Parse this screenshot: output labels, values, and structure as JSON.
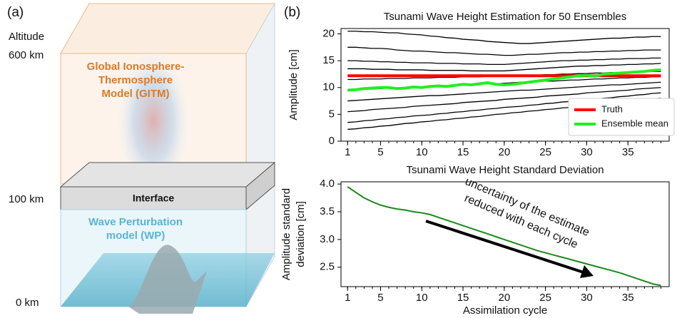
{
  "panel_a": {
    "label": "(a)",
    "altitude_label": "Altitude",
    "altitudes": [
      "600 km",
      "100 km",
      "0 km"
    ],
    "gitm_label": [
      "Global Ionosphere-",
      "Thermosphere",
      "Model (GITM)"
    ],
    "interface_label": "Interface",
    "wp_label": [
      "Wave Perturbation",
      "model (WP)"
    ]
  },
  "panel_b_label": "(b)",
  "chart_data": [
    {
      "type": "line",
      "title": "Tsunami Wave Height Estimation for 50 Ensembles",
      "ylabel": [
        "Amplitude [cm]"
      ],
      "x": [
        1,
        2,
        3,
        4,
        5,
        6,
        7,
        8,
        9,
        10,
        11,
        12,
        13,
        14,
        15,
        16,
        17,
        18,
        19,
        20,
        21,
        22,
        23,
        24,
        25,
        26,
        27,
        28,
        29,
        30,
        31,
        32,
        33,
        34,
        35,
        36,
        37,
        38,
        39
      ],
      "xlim": [
        0.2,
        40
      ],
      "xticks": [
        1,
        5,
        10,
        15,
        20,
        25,
        30,
        35
      ],
      "ylim": [
        0,
        21
      ],
      "yticks": [
        0,
        5,
        10,
        15,
        20
      ],
      "ensemble_color": "#000000",
      "ensemble_members": [
        [
          20.5,
          20.5,
          20.4,
          20.4,
          20.3,
          20.2,
          20.2,
          20.0,
          19.9,
          19.8,
          19.6,
          19.5,
          19.3,
          19.2,
          19.0,
          18.9,
          18.8,
          18.6,
          18.5,
          18.4,
          18.3,
          18.2,
          18.2,
          18.3,
          18.4,
          18.5,
          18.6,
          18.7,
          18.8,
          18.9,
          19.0,
          19.1,
          19.2,
          19.2,
          19.3,
          19.4,
          19.4,
          19.5,
          19.5
        ],
        [
          17.5,
          17.5,
          17.4,
          17.3,
          17.3,
          17.2,
          17.0,
          16.9,
          16.8,
          16.8,
          16.7,
          16.6,
          16.5,
          16.5,
          16.4,
          16.3,
          16.2,
          16.2,
          16.1,
          16.0,
          16.0,
          16.1,
          16.2,
          16.2,
          16.3,
          16.4,
          16.5,
          16.5,
          16.6,
          16.6,
          16.7,
          16.7,
          16.8,
          16.8,
          16.9,
          16.9,
          17.0,
          17.0,
          17.0
        ],
        [
          15.0,
          15.0,
          14.9,
          14.9,
          14.8,
          14.8,
          14.7,
          14.7,
          14.6,
          14.6,
          14.6,
          14.5,
          14.5,
          14.5,
          14.4,
          14.4,
          14.4,
          14.3,
          14.3,
          14.3,
          14.4,
          14.5,
          14.6,
          14.7,
          14.8,
          14.9,
          15.0,
          15.0,
          15.1,
          15.1,
          15.2,
          15.2,
          15.3,
          15.3,
          15.4,
          15.4,
          15.4,
          15.5,
          15.5
        ],
        [
          13.5,
          13.5,
          13.5,
          13.4,
          13.4,
          13.4,
          13.3,
          13.3,
          13.3,
          13.3,
          13.2,
          13.2,
          13.2,
          13.2,
          13.2,
          13.1,
          13.1,
          13.1,
          13.1,
          13.1,
          13.2,
          13.3,
          13.4,
          13.5,
          13.6,
          13.7,
          13.8,
          13.9,
          14.0,
          14.0,
          14.1,
          14.1,
          14.2,
          14.2,
          14.3,
          14.3,
          14.4,
          14.4,
          14.5
        ],
        [
          11.5,
          11.5,
          11.6,
          11.6,
          11.6,
          11.7,
          11.7,
          11.7,
          11.8,
          11.8,
          11.8,
          11.9,
          11.9,
          11.9,
          12.0,
          12.0,
          12.0,
          12.1,
          12.1,
          12.1,
          12.2,
          12.2,
          12.3,
          12.3,
          12.4,
          12.4,
          12.5,
          12.5,
          12.6,
          12.6,
          12.7,
          12.7,
          12.8,
          12.8,
          12.8,
          12.9,
          12.9,
          13.0,
          13.0
        ],
        [
          9.5,
          9.6,
          9.7,
          9.7,
          9.8,
          9.9,
          9.9,
          10.0,
          10.1,
          10.1,
          10.2,
          10.3,
          10.3,
          10.4,
          10.5,
          10.5,
          10.6,
          10.7,
          10.7,
          10.8,
          10.9,
          11.0,
          11.0,
          11.1,
          11.2,
          11.2,
          11.3,
          11.4,
          11.4,
          11.5,
          11.6,
          11.6,
          11.7,
          11.8,
          11.8,
          11.9,
          11.9,
          12.0,
          12.0
        ],
        [
          7.5,
          7.6,
          7.7,
          7.8,
          7.9,
          8.0,
          8.1,
          8.2,
          8.3,
          8.4,
          8.5,
          8.5,
          8.6,
          8.7,
          8.8,
          8.9,
          9.0,
          9.1,
          9.2,
          9.3,
          9.4,
          9.5,
          9.5,
          9.6,
          9.7,
          9.8,
          9.9,
          10.0,
          10.1,
          10.2,
          10.3,
          10.4,
          10.5,
          10.5,
          10.6,
          10.7,
          10.8,
          10.9,
          11.0
        ],
        [
          5.5,
          5.6,
          5.7,
          5.9,
          6.0,
          6.1,
          6.2,
          6.3,
          6.5,
          6.6,
          6.7,
          6.8,
          6.9,
          7.0,
          7.2,
          7.3,
          7.4,
          7.5,
          7.6,
          7.8,
          7.9,
          8.0,
          8.1,
          8.2,
          8.4,
          8.5,
          8.6,
          8.7,
          8.8,
          9.0,
          9.1,
          9.2,
          9.3,
          9.4,
          9.5,
          9.7,
          9.8,
          9.9,
          10.0
        ],
        [
          3.5,
          3.6,
          3.8,
          3.9,
          4.1,
          4.2,
          4.4,
          4.5,
          4.7,
          4.8,
          4.9,
          5.1,
          5.2,
          5.4,
          5.5,
          5.7,
          5.8,
          6.0,
          6.1,
          6.3,
          6.4,
          6.5,
          6.7,
          6.8,
          7.0,
          7.1,
          7.3,
          7.4,
          7.6,
          7.7,
          7.8,
          8.0,
          8.1,
          8.3,
          8.4,
          8.6,
          8.7,
          8.9,
          9.0
        ],
        [
          2.2,
          2.3,
          2.5,
          2.6,
          2.8,
          2.9,
          3.1,
          3.3,
          3.4,
          3.6,
          3.7,
          3.9,
          4.0,
          4.2,
          4.3,
          4.5,
          4.6,
          4.8,
          5.0,
          5.1,
          5.3,
          5.4,
          5.6,
          5.7,
          5.9,
          6.0,
          6.2,
          6.3,
          6.5,
          6.7,
          6.8,
          7.0,
          7.1,
          7.3,
          7.4,
          7.6,
          7.7,
          7.9,
          8.0
        ]
      ],
      "series": [
        {
          "name": "Truth",
          "color": "#ff0000",
          "width": 4,
          "values": [
            12.2,
            12.2,
            12.2,
            12.2,
            12.2,
            12.2,
            12.2,
            12.2,
            12.2,
            12.2,
            12.2,
            12.2,
            12.2,
            12.2,
            12.2,
            12.2,
            12.2,
            12.2,
            12.2,
            12.2,
            12.2,
            12.2,
            12.2,
            12.2,
            12.2,
            12.2,
            12.2,
            12.2,
            12.2,
            12.2,
            12.2,
            12.2,
            12.2,
            12.2,
            12.2,
            12.2,
            12.2,
            12.2,
            12.2
          ]
        },
        {
          "name": "Ensemble mean",
          "color": "#22ee22",
          "width": 4,
          "values": [
            9.5,
            9.6,
            9.8,
            9.9,
            10.0,
            10.0,
            9.8,
            9.9,
            10.1,
            10.0,
            10.2,
            10.3,
            10.2,
            10.4,
            10.6,
            10.5,
            10.7,
            10.9,
            10.6,
            10.5,
            10.6,
            10.8,
            11.0,
            11.2,
            11.4,
            11.6,
            11.8,
            12.0,
            12.2,
            12.3,
            12.1,
            12.5,
            12.6,
            12.7,
            12.8,
            12.9,
            13.0,
            13.2,
            13.3
          ]
        }
      ],
      "legend": "lower right"
    },
    {
      "type": "line",
      "title": "Tsunami Wave Height Standard Deviation",
      "ylabel": [
        "Amplitude standard",
        "deviation [cm]"
      ],
      "xlabel": "Assimilation cycle",
      "x": [
        1,
        2,
        3,
        4,
        5,
        6,
        7,
        8,
        9,
        10,
        11,
        12,
        13,
        14,
        15,
        16,
        17,
        18,
        19,
        20,
        21,
        22,
        23,
        24,
        25,
        26,
        27,
        28,
        29,
        30,
        31,
        32,
        33,
        34,
        35,
        36,
        37,
        38,
        39
      ],
      "xlim": [
        0.2,
        40
      ],
      "xticks": [
        1,
        5,
        10,
        15,
        20,
        25,
        30,
        35
      ],
      "ylim": [
        2.15,
        4.04
      ],
      "yticks": [
        2.5,
        {
          "value": 3,
          "label": "3.0"
        },
        3.5,
        {
          "value": 4,
          "label": "4.0"
        }
      ],
      "series": [
        {
          "color": "#1a8a1a",
          "width": 2,
          "values": [
            3.95,
            3.85,
            3.75,
            3.68,
            3.62,
            3.58,
            3.55,
            3.53,
            3.5,
            3.48,
            3.45,
            3.4,
            3.35,
            3.3,
            3.25,
            3.2,
            3.15,
            3.1,
            3.05,
            3.0,
            2.95,
            2.9,
            2.85,
            2.8,
            2.76,
            2.72,
            2.68,
            2.64,
            2.6,
            2.56,
            2.52,
            2.48,
            2.44,
            2.4,
            2.35,
            2.3,
            2.25,
            2.2,
            2.17
          ]
        }
      ],
      "annotation": [
        "uncertainty of the estimate",
        "reduced with each cycle"
      ]
    }
  ]
}
